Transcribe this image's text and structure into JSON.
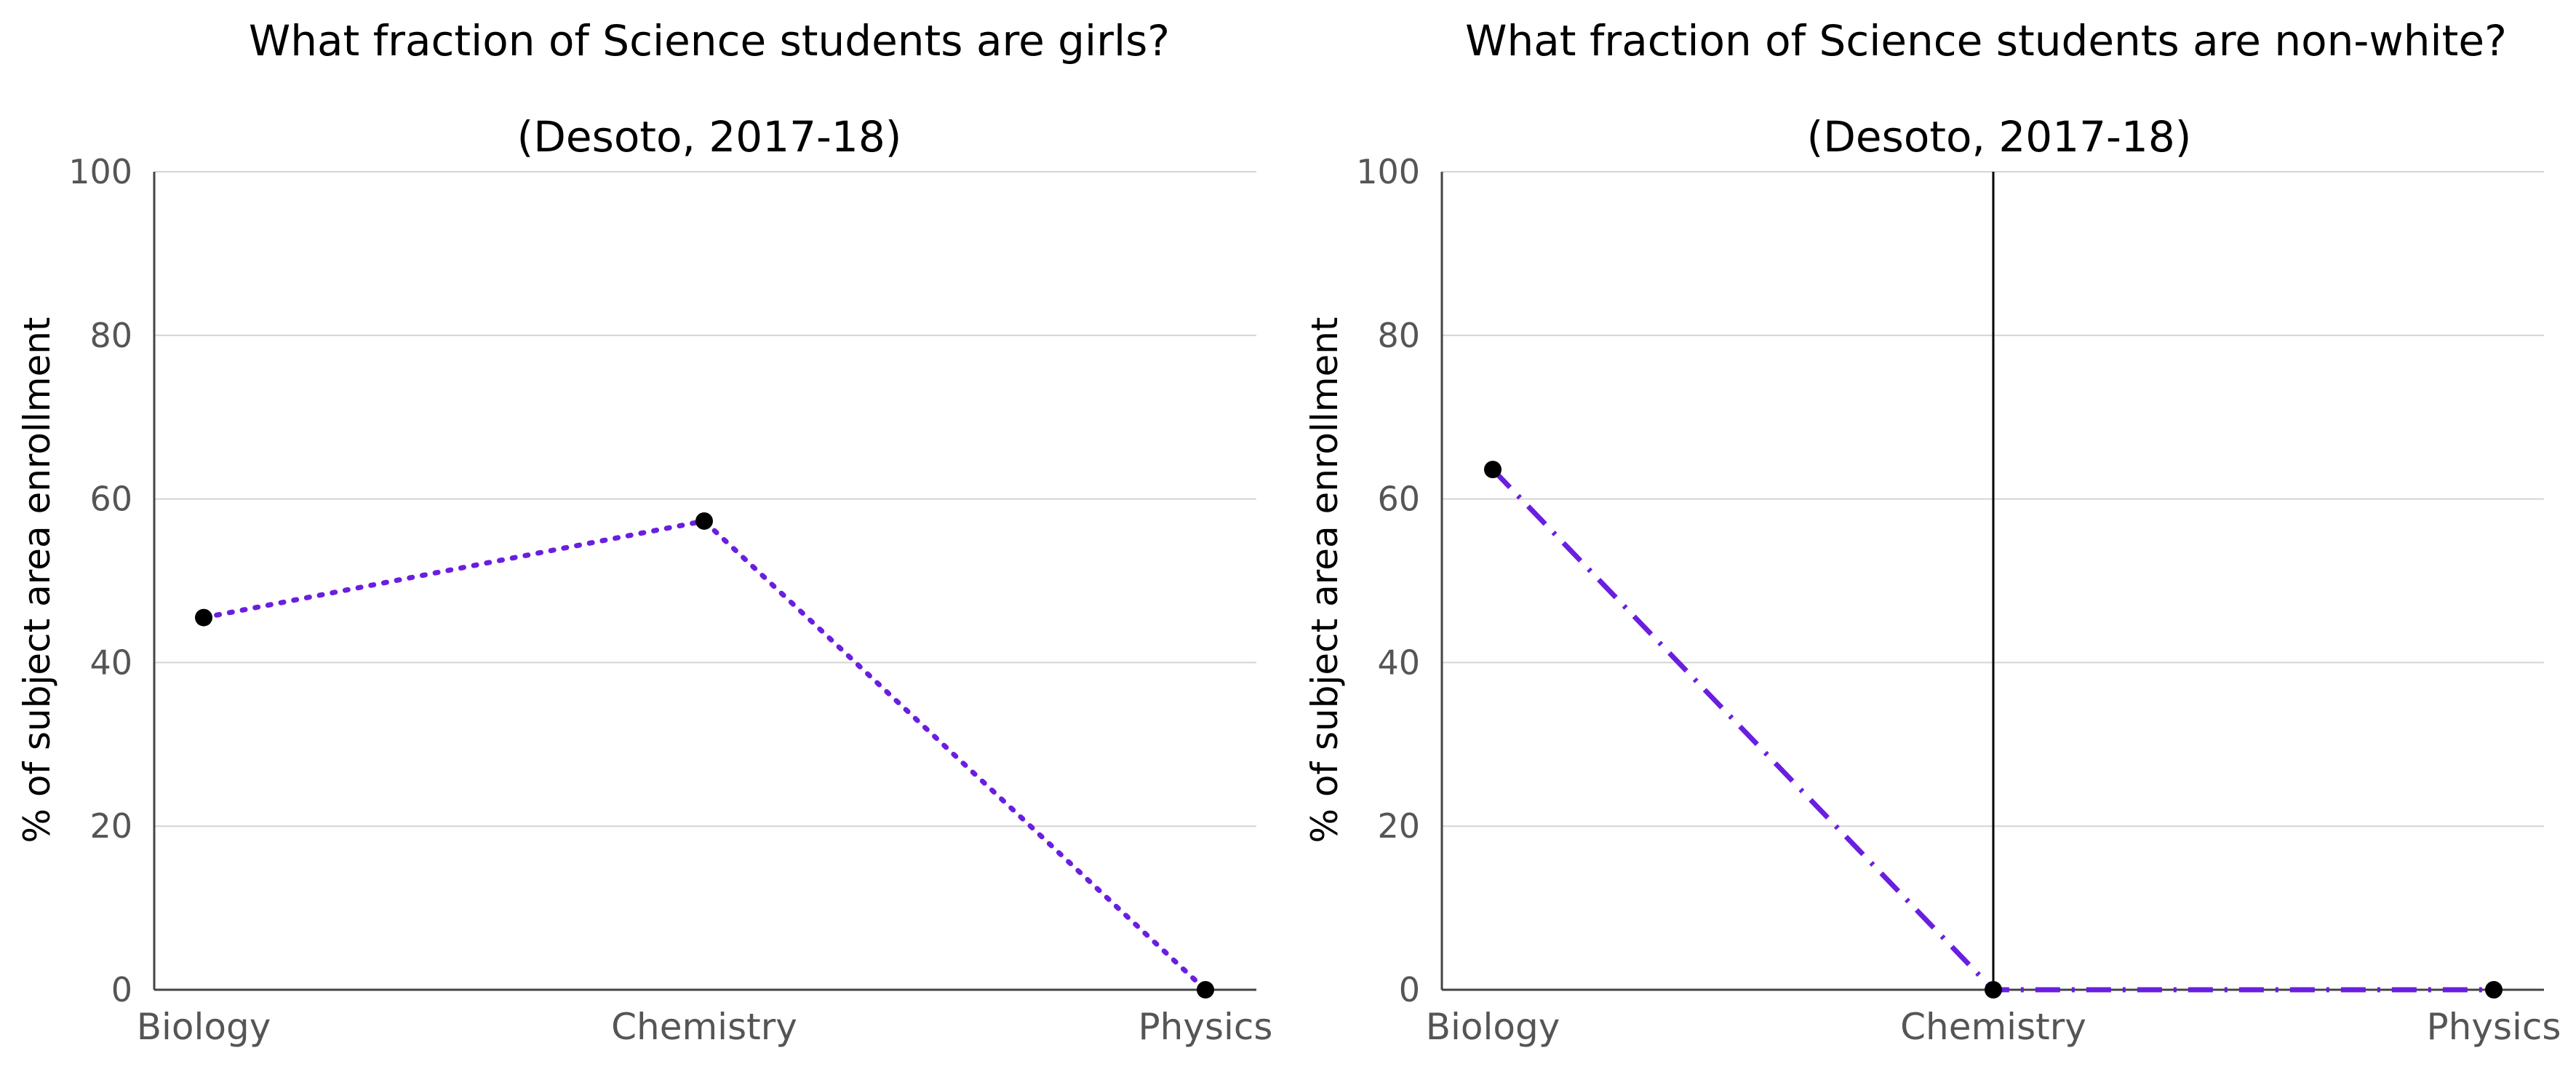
{
  "chart_data": [
    {
      "type": "line",
      "title": "What fraction of Science students are girls?",
      "subtitle": "(Desoto, 2017-18)",
      "ylabel": "% of subject area enrollment",
      "xlabel": "",
      "categories": [
        "Biology",
        "Chemistry",
        "Physics"
      ],
      "values": [
        45.5,
        57.3,
        0
      ],
      "ylim": [
        0,
        100
      ],
      "yticks": [
        "0",
        "20",
        "40",
        "60",
        "80",
        "100"
      ],
      "line_style": "dotted",
      "line_color": "#6a1ee0",
      "marker_color": "#000000",
      "grid": true
    },
    {
      "type": "line",
      "title": "What fraction of Science students are non-white?",
      "subtitle": "(Desoto, 2017-18)",
      "ylabel": "% of subject area enrollment",
      "xlabel": "",
      "categories": [
        "Biology",
        "Chemistry",
        "Physics"
      ],
      "values": [
        63.6,
        0,
        0
      ],
      "ylim": [
        0,
        100
      ],
      "yticks": [
        "0",
        "20",
        "40",
        "60",
        "80",
        "100"
      ],
      "line_style": "dash-dot",
      "line_color": "#6a1ee0",
      "marker_color": "#000000",
      "grid": true,
      "reference_line_at": "Chemistry"
    }
  ]
}
